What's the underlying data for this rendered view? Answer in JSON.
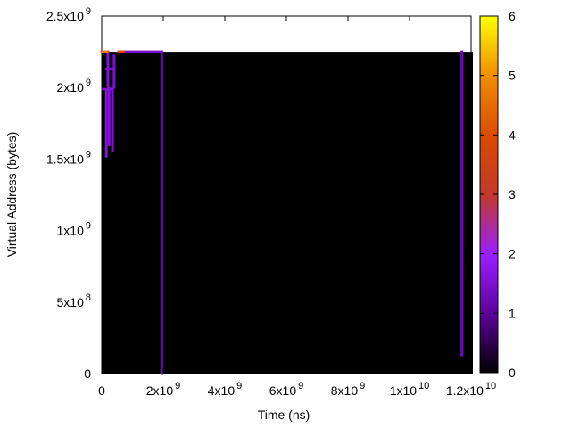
{
  "chart_data": {
    "type": "heatmap",
    "xlabel": "Time (ns)",
    "ylabel": "Virtual Address (bytes)",
    "xlim": [
      0,
      12000000000
    ],
    "ylim": [
      0,
      2500000000
    ],
    "x_ticks": [
      {
        "value": 0,
        "mantissa": "0",
        "exponent": ""
      },
      {
        "value": 2000000000,
        "mantissa": "2x10",
        "exponent": "9"
      },
      {
        "value": 4000000000,
        "mantissa": "4x10",
        "exponent": "9"
      },
      {
        "value": 6000000000,
        "mantissa": "6x10",
        "exponent": "9"
      },
      {
        "value": 8000000000,
        "mantissa": "8x10",
        "exponent": "9"
      },
      {
        "value": 10000000000,
        "mantissa": "1x10",
        "exponent": "10"
      },
      {
        "value": 12000000000,
        "mantissa": "1.2x10",
        "exponent": "10"
      }
    ],
    "y_ticks": [
      {
        "value": 0,
        "mantissa": "0",
        "exponent": ""
      },
      {
        "value": 500000000,
        "mantissa": "5x10",
        "exponent": "8"
      },
      {
        "value": 1000000000,
        "mantissa": "1x10",
        "exponent": "9"
      },
      {
        "value": 1500000000,
        "mantissa": "1.5x10",
        "exponent": "9"
      },
      {
        "value": 2000000000,
        "mantissa": "2x10",
        "exponent": "9"
      },
      {
        "value": 2500000000,
        "mantissa": "2.5x10",
        "exponent": "9"
      }
    ],
    "colorbar": {
      "range": [
        0,
        6
      ],
      "ticks": [
        "0",
        "1",
        "2",
        "3",
        "4",
        "5",
        "6"
      ],
      "colors": [
        "#000000",
        "#5a0096",
        "#9a20ff",
        "#c0392b",
        "#d94a00",
        "#f08c00",
        "#ffff00"
      ]
    },
    "background_value": 0,
    "data_extent": {
      "x": [
        0,
        12000000000
      ],
      "y": [
        0,
        2250000000
      ]
    },
    "background_color": "#000000",
    "segments": [
      {
        "x0": 1950000000,
        "x1": 1950000000,
        "y0": 0,
        "y1": 2250000000,
        "value": 1.3
      },
      {
        "x0": 11700000000,
        "x1": 11700000000,
        "y0": 130000000,
        "y1": 2250000000,
        "value": 1.3
      },
      {
        "x0": 580000000,
        "x1": 1950000000,
        "y0": 2250000000,
        "y1": 2250000000,
        "value": 1.5
      },
      {
        "x0": 150000000,
        "x1": 150000000,
        "y0": 1520000000,
        "y1": 1990000000,
        "value": 1.6
      },
      {
        "x0": 240000000,
        "x1": 240000000,
        "y0": 1600000000,
        "y1": 1990000000,
        "value": 1.6
      },
      {
        "x0": 350000000,
        "x1": 350000000,
        "y0": 1560000000,
        "y1": 1980000000,
        "value": 1.6
      },
      {
        "x0": 50000000,
        "x1": 350000000,
        "y0": 1990000000,
        "y1": 1990000000,
        "value": 1.6
      },
      {
        "x0": 200000000,
        "x1": 200000000,
        "y0": 2000000000,
        "y1": 2250000000,
        "value": 1.6
      },
      {
        "x0": 400000000,
        "x1": 400000000,
        "y0": 2000000000,
        "y1": 2220000000,
        "value": 1.5
      },
      {
        "x0": 150000000,
        "x1": 350000000,
        "y0": 2130000000,
        "y1": 2130000000,
        "value": 1.5
      },
      {
        "x0": 0,
        "x1": 180000000,
        "y0": 2250000000,
        "y1": 2250000000,
        "value": 4.6
      },
      {
        "x0": 550000000,
        "x1": 700000000,
        "y0": 2250000000,
        "y1": 2250000000,
        "value": 4.0
      }
    ]
  }
}
